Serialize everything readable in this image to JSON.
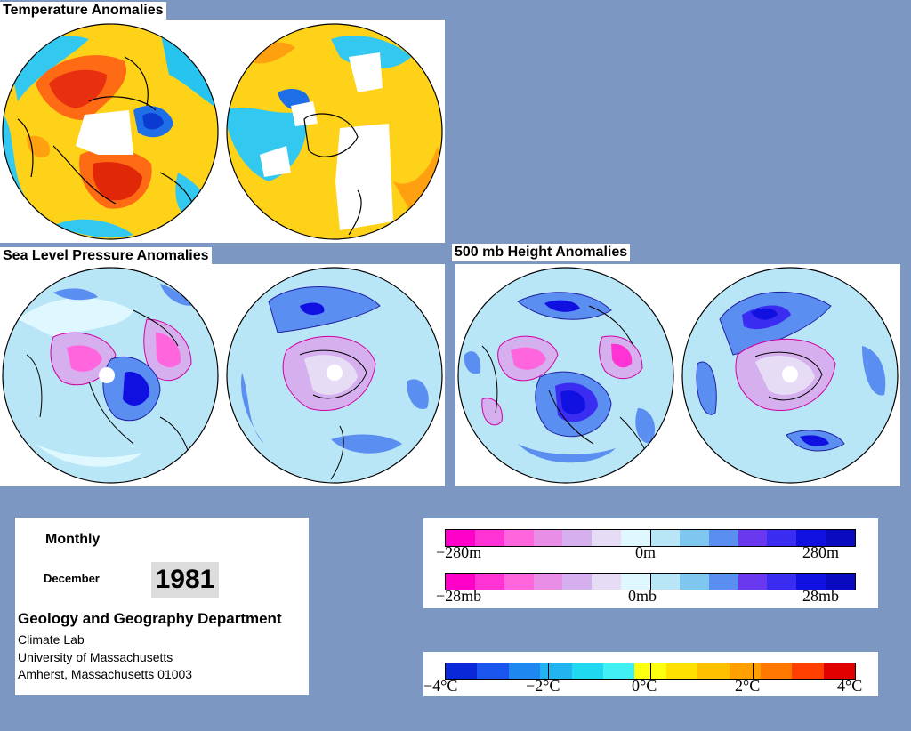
{
  "titles": {
    "temperature": "Temperature Anomalies",
    "slp": "Sea Level Pressure Anomalies",
    "height": "500 mb Height Anomalies"
  },
  "info": {
    "period": "Monthly",
    "month": "December",
    "year": "1981",
    "department": "Geology and Geography Department",
    "lab": "Climate Lab",
    "university": "University of Massachusetts",
    "address": "Amherst, Massachusetts 01003"
  },
  "legend_height": {
    "min": "−280m",
    "mid": "0m",
    "max": "280m"
  },
  "legend_pressure": {
    "min": "−28mb",
    "mid": "0mb",
    "max": "28mb"
  },
  "legend_temp": {
    "l1": "−4°C",
    "l2": "−2°C",
    "l3": "0°C",
    "l4": "2°C",
    "l5": "4°C"
  },
  "colors": {
    "background": "#7b97c2",
    "pressure_scale": [
      "#ff00c8",
      "#ff33d4",
      "#ff66dd",
      "#e98ee6",
      "#d6b0ee",
      "#e6dcf5",
      "#dff8ff",
      "#b8e6f6",
      "#7fc7ef",
      "#5a8ef0",
      "#6a38ee",
      "#3a2cf0",
      "#1010e0",
      "#0a0ac0"
    ],
    "temp_scale": [
      "#0a28d8",
      "#1a55ee",
      "#1e88f0",
      "#22b4f0",
      "#20d8f0",
      "#40f0f4",
      "#ffff10",
      "#ffe000",
      "#ffc000",
      "#ffa000",
      "#ff7800",
      "#ff4000",
      "#e00000"
    ]
  }
}
